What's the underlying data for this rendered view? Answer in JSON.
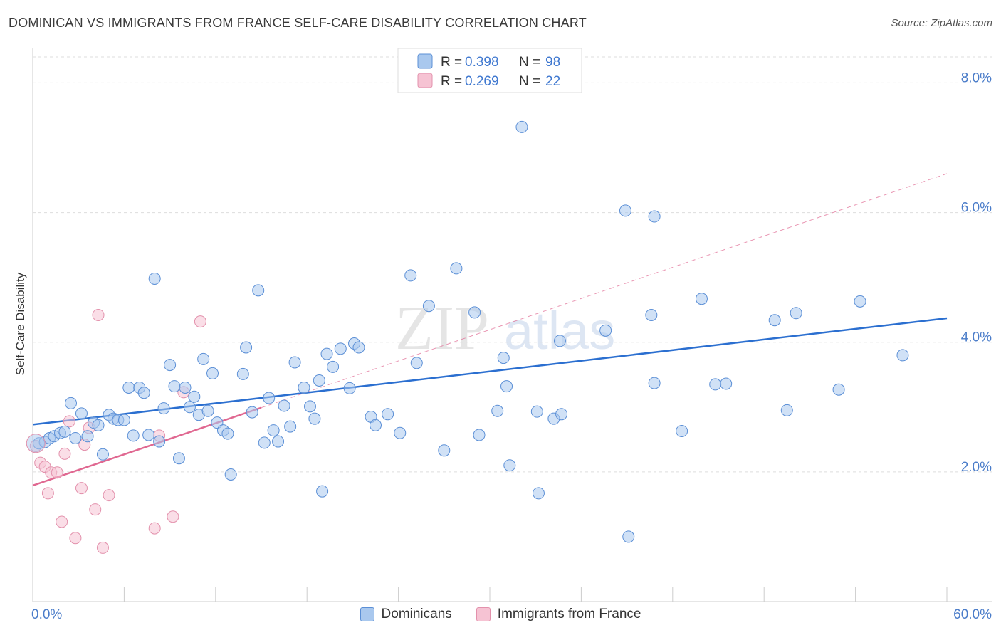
{
  "header": {
    "title": "DOMINICAN VS IMMIGRANTS FROM FRANCE SELF-CARE DISABILITY CORRELATION CHART",
    "source": "Source: ZipAtlas.com"
  },
  "colors": {
    "blue_fill": "#a9c8ee",
    "blue_stroke": "#5b8fd6",
    "blue_line": "#2b6fd0",
    "pink_fill": "#f6c3d3",
    "pink_stroke": "#e391ac",
    "pink_line": "#e06891",
    "axis_label": "#4a7cc9",
    "grid": "#dddddd"
  },
  "legend_top": {
    "rows": [
      {
        "r_label": "R = ",
        "r_value": "0.398",
        "n_label": "N = ",
        "n_value": "98"
      },
      {
        "r_label": "R = ",
        "r_value": "0.269",
        "n_label": "N = ",
        "n_value": "22"
      }
    ]
  },
  "legend_bottom": {
    "items": [
      {
        "label": "Dominicans"
      },
      {
        "label": "Immigrants from France"
      }
    ]
  },
  "watermark": {
    "zip": "ZIP",
    "atlas": "atlas"
  },
  "chart_data": {
    "type": "scatter",
    "title": "DOMINICAN VS IMMIGRANTS FROM FRANCE SELF-CARE DISABILITY CORRELATION CHART",
    "xlabel": "",
    "ylabel": "Self-Care Disability",
    "xlim": [
      0,
      60
    ],
    "ylim": [
      0,
      8.4
    ],
    "x_tick_labels": [
      "0.0%",
      "60.0%"
    ],
    "y_ticks": [
      2,
      4,
      6,
      8
    ],
    "y_tick_labels": [
      "2.0%",
      "4.0%",
      "6.0%",
      "8.0%"
    ],
    "grid": true,
    "series": [
      {
        "name": "Dominicans",
        "r": 0.398,
        "n": 98,
        "trend": {
          "x": [
            0,
            60
          ],
          "y": [
            2.73,
            4.37
          ],
          "style": "solid"
        },
        "points": [
          [
            0.4,
            2.44
          ],
          [
            0.8,
            2.46
          ],
          [
            1.1,
            2.52
          ],
          [
            1.4,
            2.55
          ],
          [
            1.8,
            2.6
          ],
          [
            2.1,
            2.62
          ],
          [
            2.5,
            3.06
          ],
          [
            2.8,
            2.52
          ],
          [
            3.2,
            2.9
          ],
          [
            3.6,
            2.55
          ],
          [
            4,
            2.76
          ],
          [
            4.3,
            2.72
          ],
          [
            4.6,
            2.27
          ],
          [
            5,
            2.88
          ],
          [
            5.3,
            2.82
          ],
          [
            5.6,
            2.8
          ],
          [
            6,
            2.8
          ],
          [
            6.3,
            3.3
          ],
          [
            6.6,
            2.56
          ],
          [
            7,
            3.3
          ],
          [
            7.3,
            3.22
          ],
          [
            7.6,
            2.57
          ],
          [
            8,
            4.98
          ],
          [
            8.3,
            2.47
          ],
          [
            8.6,
            2.98
          ],
          [
            9,
            3.65
          ],
          [
            9.3,
            3.32
          ],
          [
            9.6,
            2.21
          ],
          [
            10,
            3.3
          ],
          [
            10.3,
            3.0
          ],
          [
            10.6,
            3.16
          ],
          [
            10.9,
            2.88
          ],
          [
            11.2,
            3.74
          ],
          [
            11.5,
            2.94
          ],
          [
            11.8,
            3.52
          ],
          [
            12.1,
            2.76
          ],
          [
            12.5,
            2.64
          ],
          [
            12.8,
            2.59
          ],
          [
            13,
            1.96
          ],
          [
            13.8,
            3.51
          ],
          [
            14,
            3.92
          ],
          [
            14.4,
            2.92
          ],
          [
            14.8,
            4.8
          ],
          [
            15.2,
            2.45
          ],
          [
            15.5,
            3.14
          ],
          [
            15.8,
            2.64
          ],
          [
            16.1,
            2.47
          ],
          [
            16.5,
            3.02
          ],
          [
            16.9,
            2.7
          ],
          [
            17.2,
            3.69
          ],
          [
            17.8,
            3.3
          ],
          [
            18.2,
            3.01
          ],
          [
            18.5,
            2.82
          ],
          [
            18.8,
            3.41
          ],
          [
            19,
            1.7
          ],
          [
            19.3,
            3.82
          ],
          [
            19.7,
            3.62
          ],
          [
            20.2,
            3.9
          ],
          [
            20.8,
            3.29
          ],
          [
            21.1,
            3.98
          ],
          [
            21.4,
            3.92
          ],
          [
            22.2,
            2.85
          ],
          [
            22.5,
            2.72
          ],
          [
            23.3,
            2.89
          ],
          [
            24.1,
            2.6
          ],
          [
            24.8,
            5.03
          ],
          [
            25.2,
            3.68
          ],
          [
            26,
            4.56
          ],
          [
            27,
            2.33
          ],
          [
            27.8,
            5.14
          ],
          [
            29,
            4.46
          ],
          [
            29.3,
            2.57
          ],
          [
            30.5,
            2.94
          ],
          [
            30.9,
            3.76
          ],
          [
            31.1,
            3.32
          ],
          [
            31.3,
            2.1
          ],
          [
            32.1,
            7.32
          ],
          [
            33.1,
            2.93
          ],
          [
            33.2,
            1.67
          ],
          [
            34.2,
            2.82
          ],
          [
            34.6,
            4.02
          ],
          [
            34.7,
            2.89
          ],
          [
            37.6,
            4.18
          ],
          [
            38.9,
            6.03
          ],
          [
            39.1,
            1.0
          ],
          [
            40.6,
            4.42
          ],
          [
            40.8,
            3.37
          ],
          [
            40.8,
            5.94
          ],
          [
            42.6,
            2.63
          ],
          [
            43.9,
            4.67
          ],
          [
            44.8,
            3.35
          ],
          [
            45.5,
            3.36
          ],
          [
            48.7,
            4.34
          ],
          [
            49.5,
            2.95
          ],
          [
            50.1,
            4.45
          ],
          [
            52.9,
            3.27
          ],
          [
            54.3,
            4.63
          ],
          [
            57.1,
            3.8
          ]
        ]
      },
      {
        "name": "Immigrants from France",
        "r": 0.269,
        "n": 22,
        "trend": {
          "x": [
            0,
            15
          ],
          "y": [
            1.79,
            2.99
          ],
          "style": "solid",
          "extended": {
            "x": [
              15,
              60
            ],
            "y": [
              2.99,
              6.6
            ],
            "style": "dashed"
          }
        },
        "points": [
          [
            0.2,
            2.4
          ],
          [
            0.5,
            2.14
          ],
          [
            0.8,
            2.08
          ],
          [
            1,
            1.67
          ],
          [
            1.2,
            1.99
          ],
          [
            1.6,
            1.99
          ],
          [
            1.9,
            1.23
          ],
          [
            2.1,
            2.28
          ],
          [
            2.4,
            2.78
          ],
          [
            2.8,
            0.98
          ],
          [
            3.2,
            1.75
          ],
          [
            3.4,
            2.42
          ],
          [
            3.7,
            2.68
          ],
          [
            4.1,
            1.42
          ],
          [
            4.3,
            4.42
          ],
          [
            4.6,
            0.83
          ],
          [
            5,
            1.64
          ],
          [
            8,
            1.13
          ],
          [
            8.3,
            2.56
          ],
          [
            9.2,
            1.31
          ],
          [
            9.9,
            3.23
          ],
          [
            11,
            4.32
          ]
        ]
      }
    ]
  }
}
